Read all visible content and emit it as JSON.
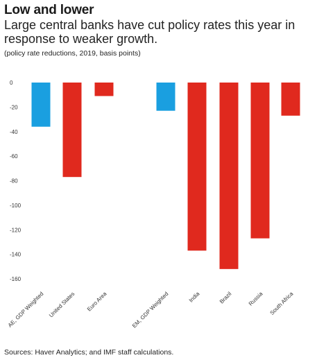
{
  "title": "Low and lower",
  "subtitle": "Large central banks have cut policy rates this year in response to weaker growth.",
  "note": "(policy rate reductions, 2019, basis points)",
  "source": "Sources: Haver Analytics; and IMF staff calculations.",
  "colors": {
    "weighted": "#1a9fe0",
    "country": "#e0291e"
  },
  "chart_data": {
    "type": "bar",
    "categories": [
      "AE, GDP Weighted",
      "United States",
      "Euro Area",
      "EM, GDP Weighted",
      "India",
      "Brazil",
      "Russia",
      "South Africa"
    ],
    "values": [
      -36,
      -77,
      -11,
      -23,
      -137,
      -152,
      -127,
      -27
    ],
    "bar_kind": [
      "weighted",
      "country",
      "country",
      "weighted",
      "country",
      "country",
      "country",
      "country"
    ],
    "ylim": [
      -160,
      0
    ],
    "yticks": [
      0,
      -20,
      -40,
      -60,
      -80,
      -100,
      -120,
      -140,
      -160
    ],
    "grid": false
  }
}
